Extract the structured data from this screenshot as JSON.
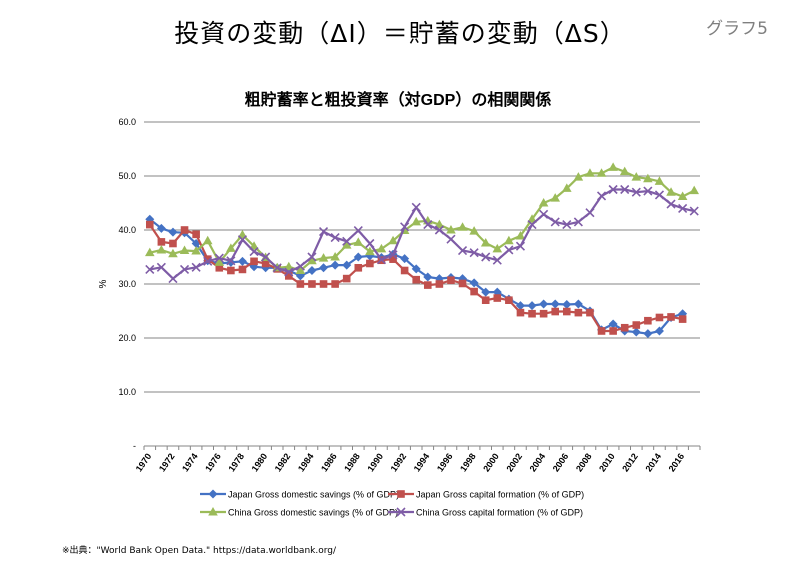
{
  "slide": {
    "title": "投資の変動（ΔI）＝貯蓄の変動（ΔS）",
    "tag": "グラフ5",
    "source": "※出典：\"World Bank Open Data.\" https://data.worldbank.org/"
  },
  "chart_data": {
    "type": "line",
    "title": "粗貯蓄率と粗投資率（対GDP）の相関関係",
    "ylabel": "%",
    "xlabel": "",
    "ylim": [
      0,
      60
    ],
    "yticks": [
      "-",
      "10.0",
      "20.0",
      "30.0",
      "40.0",
      "50.0",
      "60.0"
    ],
    "grid": true,
    "legend_position": "bottom",
    "x": [
      1970,
      1971,
      1972,
      1973,
      1974,
      1975,
      1976,
      1977,
      1978,
      1979,
      1980,
      1981,
      1982,
      1983,
      1984,
      1985,
      1986,
      1987,
      1988,
      1989,
      1990,
      1991,
      1992,
      1993,
      1994,
      1995,
      1996,
      1997,
      1998,
      1999,
      2000,
      2001,
      2002,
      2003,
      2004,
      2005,
      2006,
      2007,
      2008,
      2009,
      2010,
      2011,
      2012,
      2013,
      2014,
      2015,
      2016,
      2017
    ],
    "xtick_labels": [
      "1970",
      "1972",
      "1974",
      "1976",
      "1978",
      "1980",
      "1982",
      "1984",
      "1986",
      "1988",
      "1990",
      "1992",
      "1994",
      "1996",
      "1998",
      "2000",
      "2002",
      "2004",
      "2006",
      "2008",
      "2010",
      "2012",
      "2014",
      "2016"
    ],
    "series": [
      {
        "name": "Japan Gross domestic savings (% of GDP)",
        "color": "#4472c4",
        "marker": "diamond",
        "values": [
          42.0,
          40.3,
          39.6,
          39.5,
          37.5,
          34.3,
          33.8,
          34.0,
          34.2,
          33.2,
          33.0,
          33.0,
          32.5,
          31.5,
          32.5,
          33.0,
          33.5,
          33.5,
          35.0,
          35.2,
          34.9,
          35.5,
          34.7,
          32.8,
          31.3,
          31.0,
          31.2,
          31.0,
          30.2,
          28.5,
          28.5,
          27.2,
          26.0,
          26.0,
          26.3,
          26.3,
          26.2,
          26.3,
          25.0,
          21.5,
          22.6,
          21.3,
          21.1,
          20.8,
          21.3,
          23.8,
          24.5,
          null
        ]
      },
      {
        "name": "Japan Gross capital formation (% of GDP)",
        "color": "#c0504d",
        "marker": "square",
        "values": [
          41.0,
          37.8,
          37.5,
          40.0,
          39.2,
          34.6,
          33.0,
          32.5,
          32.7,
          34.2,
          33.8,
          32.8,
          31.5,
          30.0,
          30.0,
          30.0,
          30.0,
          31.0,
          33.0,
          33.8,
          34.4,
          34.6,
          32.5,
          30.8,
          29.8,
          30.0,
          30.7,
          30.1,
          28.6,
          27.0,
          27.4,
          27.0,
          24.7,
          24.5,
          24.5,
          24.9,
          24.9,
          24.7,
          24.7,
          21.3,
          21.3,
          21.9,
          22.4,
          23.2,
          23.8,
          23.9,
          23.5,
          null
        ]
      },
      {
        "name": "China Gross domestic savings (% of GDP)",
        "color": "#9bbb59",
        "marker": "triangle",
        "values": [
          35.8,
          36.3,
          35.6,
          36.2,
          36.1,
          38.0,
          34.0,
          36.6,
          39.1,
          37.0,
          34.9,
          33.0,
          33.2,
          32.5,
          34.3,
          34.8,
          35.0,
          37.2,
          37.7,
          36.0,
          36.5,
          38.0,
          39.9,
          41.5,
          41.7,
          41.0,
          40.0,
          40.5,
          39.8,
          37.6,
          36.5,
          38.0,
          38.9,
          42.0,
          45.0,
          45.9,
          47.7,
          49.8,
          50.5,
          50.5,
          51.6,
          50.8,
          49.8,
          49.5,
          49.0,
          47.0,
          46.2,
          47.3
        ]
      },
      {
        "name": "China Gross capital formation (% of GDP)",
        "color": "#7e5ca6",
        "marker": "x",
        "values": [
          32.7,
          33.1,
          31.0,
          32.7,
          33.1,
          34.2,
          34.8,
          34.3,
          38.2,
          36.0,
          35.0,
          33.0,
          32.2,
          33.3,
          35.0,
          39.7,
          38.6,
          37.9,
          39.9,
          37.5,
          34.5,
          35.4,
          40.6,
          44.2,
          41.0,
          40.0,
          38.3,
          36.2,
          35.8,
          35.0,
          34.4,
          36.3,
          37.0,
          41.0,
          42.9,
          41.5,
          41.0,
          41.5,
          43.2,
          46.3,
          47.5,
          47.5,
          47.0,
          47.2,
          46.5,
          44.8,
          44.0,
          43.5
        ]
      }
    ]
  }
}
